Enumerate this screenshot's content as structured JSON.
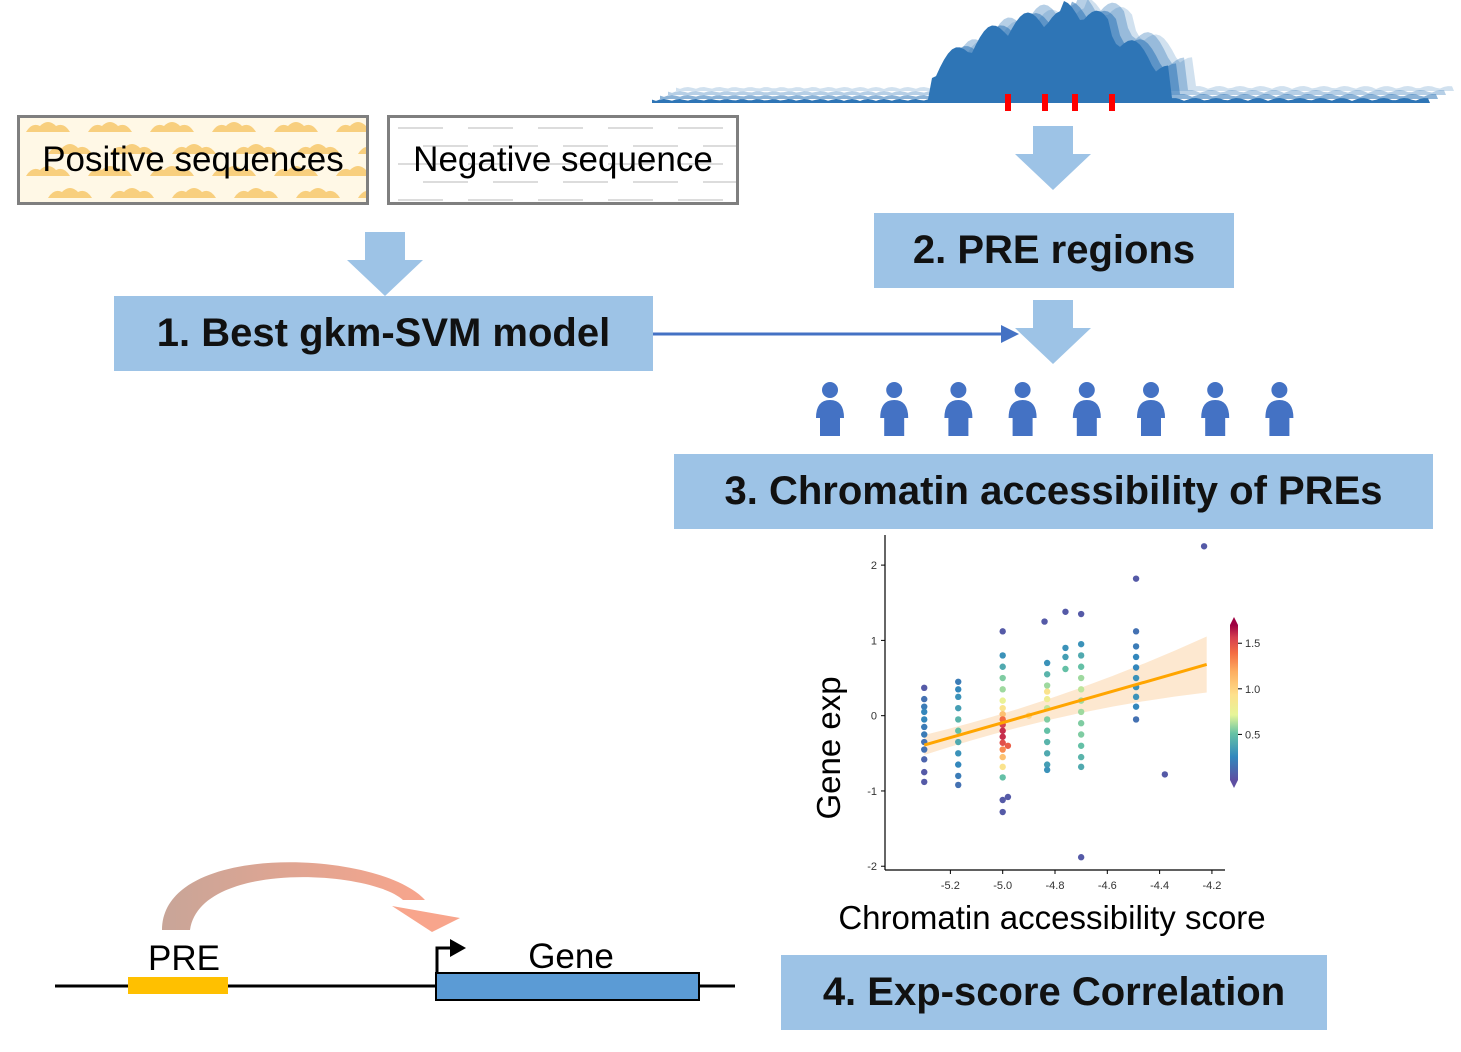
{
  "sequences": {
    "positive_label": "Positive sequences",
    "negative_label": "Negative sequence"
  },
  "steps": {
    "step1": "1. Best gkm-SVM model",
    "step2": "2. PRE regions",
    "step3": "3. Chromatin accessibility of PREs",
    "step4": "4. Exp-score Correlation"
  },
  "people_count": 8,
  "gene_diagram": {
    "pre_label": "PRE",
    "gene_label": "Gene"
  },
  "colors": {
    "step_box": "#9dc3e6",
    "arrow_fill": "#9dc3e6",
    "connector_line": "#4472c4",
    "person": "#4472c4",
    "track": "#2e75b6",
    "pre_marker": "#ff0000",
    "pre_element": "#ffc000",
    "gene_box": "#5b9bd5",
    "regression_line": "#ffa500"
  },
  "chart_data": {
    "type": "scatter",
    "xlabel": "Chromatin accessibility score",
    "ylabel": "Gene exp",
    "xlim": [
      -5.45,
      -4.15
    ],
    "ylim": [
      -2.05,
      2.4
    ],
    "xticks": [
      "-5.2",
      "-5.0",
      "-4.8",
      "-4.6",
      "-4.4",
      "-4.2"
    ],
    "yticks": [
      "-2",
      "-1",
      "0",
      "1",
      "2"
    ],
    "colorbar": {
      "ticks": [
        "0.5",
        "1.0",
        "1.5"
      ],
      "range": [
        0,
        1.7
      ]
    },
    "regression": {
      "x": [
        -5.3,
        -4.22
      ],
      "y": [
        -0.39,
        0.68
      ]
    },
    "points": [
      {
        "x": -5.3,
        "y": 0.37,
        "c": 0.05
      },
      {
        "x": -5.3,
        "y": 0.22,
        "c": 0.15
      },
      {
        "x": -5.3,
        "y": 0.12,
        "c": 0.2
      },
      {
        "x": -5.3,
        "y": 0.05,
        "c": 0.25
      },
      {
        "x": -5.3,
        "y": -0.05,
        "c": 0.25
      },
      {
        "x": -5.3,
        "y": -0.15,
        "c": 0.2
      },
      {
        "x": -5.3,
        "y": -0.25,
        "c": 0.2
      },
      {
        "x": -5.3,
        "y": -0.35,
        "c": 0.15
      },
      {
        "x": -5.3,
        "y": -0.45,
        "c": 0.15
      },
      {
        "x": -5.3,
        "y": -0.58,
        "c": 0.1
      },
      {
        "x": -5.3,
        "y": -0.75,
        "c": 0.05
      },
      {
        "x": -5.3,
        "y": -0.88,
        "c": 0.05
      },
      {
        "x": -5.17,
        "y": 0.45,
        "c": 0.2
      },
      {
        "x": -5.17,
        "y": 0.35,
        "c": 0.25
      },
      {
        "x": -5.17,
        "y": 0.25,
        "c": 0.3
      },
      {
        "x": -5.17,
        "y": 0.1,
        "c": 0.35
      },
      {
        "x": -5.17,
        "y": -0.05,
        "c": 0.45
      },
      {
        "x": -5.17,
        "y": -0.2,
        "c": 0.5
      },
      {
        "x": -5.17,
        "y": -0.35,
        "c": 0.4
      },
      {
        "x": -5.17,
        "y": -0.5,
        "c": 0.3
      },
      {
        "x": -5.17,
        "y": -0.65,
        "c": 0.25
      },
      {
        "x": -5.17,
        "y": -0.8,
        "c": 0.2
      },
      {
        "x": -5.17,
        "y": -0.92,
        "c": 0.15
      },
      {
        "x": -5.0,
        "y": 1.12,
        "c": 0.05
      },
      {
        "x": -5.0,
        "y": 0.8,
        "c": 0.3
      },
      {
        "x": -5.0,
        "y": 0.65,
        "c": 0.4
      },
      {
        "x": -5.0,
        "y": 0.5,
        "c": 0.55
      },
      {
        "x": -5.0,
        "y": 0.35,
        "c": 0.6
      },
      {
        "x": -5.0,
        "y": 0.2,
        "c": 0.75
      },
      {
        "x": -5.0,
        "y": 0.1,
        "c": 0.9
      },
      {
        "x": -5.0,
        "y": 0.02,
        "c": 1.1
      },
      {
        "x": -5.0,
        "y": -0.05,
        "c": 1.4
      },
      {
        "x": -5.0,
        "y": -0.12,
        "c": 1.55
      },
      {
        "x": -5.0,
        "y": -0.2,
        "c": 1.6
      },
      {
        "x": -5.0,
        "y": -0.28,
        "c": 1.6
      },
      {
        "x": -5.0,
        "y": -0.36,
        "c": 1.5
      },
      {
        "x": -5.0,
        "y": -0.45,
        "c": 1.3
      },
      {
        "x": -5.0,
        "y": -0.55,
        "c": 1.1
      },
      {
        "x": -5.0,
        "y": -0.68,
        "c": 0.9
      },
      {
        "x": -5.0,
        "y": -0.82,
        "c": 0.5
      },
      {
        "x": -5.0,
        "y": -1.12,
        "c": 0.05
      },
      {
        "x": -5.0,
        "y": -1.28,
        "c": 0.05
      },
      {
        "x": -4.98,
        "y": -0.4,
        "c": 1.45
      },
      {
        "x": -4.98,
        "y": -1.08,
        "c": 0.05
      },
      {
        "x": -4.9,
        "y": 0.0,
        "c": 1.0
      },
      {
        "x": -4.84,
        "y": 1.25,
        "c": 0.05
      },
      {
        "x": -4.83,
        "y": 0.7,
        "c": 0.3
      },
      {
        "x": -4.83,
        "y": 0.55,
        "c": 0.45
      },
      {
        "x": -4.83,
        "y": 0.4,
        "c": 0.6
      },
      {
        "x": -4.83,
        "y": 0.32,
        "c": 0.9
      },
      {
        "x": -4.83,
        "y": 0.22,
        "c": 0.8
      },
      {
        "x": -4.83,
        "y": 0.1,
        "c": 0.65
      },
      {
        "x": -4.83,
        "y": -0.05,
        "c": 0.55
      },
      {
        "x": -4.83,
        "y": -0.2,
        "c": 0.5
      },
      {
        "x": -4.83,
        "y": -0.35,
        "c": 0.45
      },
      {
        "x": -4.83,
        "y": -0.5,
        "c": 0.4
      },
      {
        "x": -4.83,
        "y": -0.65,
        "c": 0.35
      },
      {
        "x": -4.83,
        "y": -0.72,
        "c": 0.3
      },
      {
        "x": -4.76,
        "y": 1.38,
        "c": 0.05
      },
      {
        "x": -4.76,
        "y": 0.9,
        "c": 0.3
      },
      {
        "x": -4.76,
        "y": 0.78,
        "c": 0.35
      },
      {
        "x": -4.76,
        "y": 0.62,
        "c": 0.5
      },
      {
        "x": -4.7,
        "y": 1.35,
        "c": 0.05
      },
      {
        "x": -4.7,
        "y": 0.95,
        "c": 0.3
      },
      {
        "x": -4.7,
        "y": 0.8,
        "c": 0.4
      },
      {
        "x": -4.7,
        "y": 0.65,
        "c": 0.5
      },
      {
        "x": -4.7,
        "y": 0.5,
        "c": 0.6
      },
      {
        "x": -4.7,
        "y": 0.35,
        "c": 0.65
      },
      {
        "x": -4.7,
        "y": 0.2,
        "c": 0.6
      },
      {
        "x": -4.7,
        "y": 0.05,
        "c": 0.6
      },
      {
        "x": -4.7,
        "y": -0.1,
        "c": 0.55
      },
      {
        "x": -4.7,
        "y": -0.25,
        "c": 0.55
      },
      {
        "x": -4.7,
        "y": -0.4,
        "c": 0.5
      },
      {
        "x": -4.7,
        "y": -0.55,
        "c": 0.45
      },
      {
        "x": -4.7,
        "y": -0.68,
        "c": 0.4
      },
      {
        "x": -4.7,
        "y": -1.88,
        "c": 0.05
      },
      {
        "x": -4.49,
        "y": 1.82,
        "c": 0.05
      },
      {
        "x": -4.49,
        "y": 1.12,
        "c": 0.15
      },
      {
        "x": -4.49,
        "y": 0.92,
        "c": 0.2
      },
      {
        "x": -4.49,
        "y": 0.78,
        "c": 0.25
      },
      {
        "x": -4.49,
        "y": 0.64,
        "c": 0.25
      },
      {
        "x": -4.49,
        "y": 0.5,
        "c": 0.3
      },
      {
        "x": -4.49,
        "y": 0.38,
        "c": 0.3
      },
      {
        "x": -4.49,
        "y": 0.25,
        "c": 0.3
      },
      {
        "x": -4.49,
        "y": 0.12,
        "c": 0.25
      },
      {
        "x": -4.49,
        "y": -0.05,
        "c": 0.15
      },
      {
        "x": -4.38,
        "y": -0.78,
        "c": 0.05
      },
      {
        "x": -4.23,
        "y": 2.25,
        "c": 0.05
      }
    ]
  }
}
